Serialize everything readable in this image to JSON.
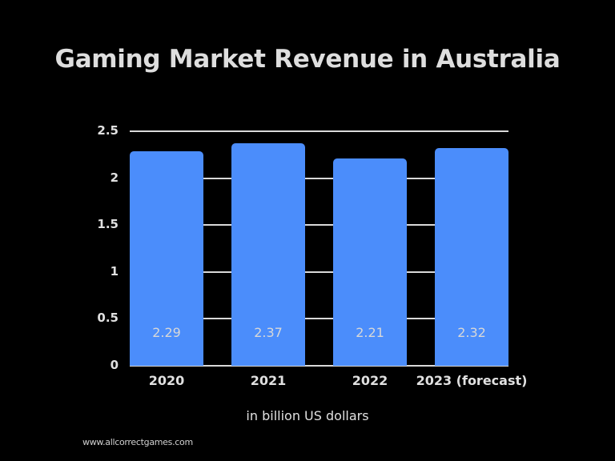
{
  "chart_data": {
    "type": "bar",
    "title": "Gaming Market Revenue in Australia",
    "categories": [
      "2020",
      "2021",
      "2022",
      "2023 (forecast)"
    ],
    "values": [
      2.29,
      2.37,
      2.21,
      2.32
    ],
    "data_labels": [
      "2.29",
      "2.37",
      "2.21",
      "2.32"
    ],
    "xlabel": "in billion US dollars",
    "ylabel": "",
    "ylim": [
      0,
      2.5
    ],
    "yticks": [
      "0",
      "0.5",
      "1",
      "1.5",
      "2",
      "2.5"
    ],
    "grid": true,
    "legend": "none",
    "bar_color": "#4b8dfb",
    "background": "#000000"
  },
  "source": "www.allcorrectgames.com"
}
